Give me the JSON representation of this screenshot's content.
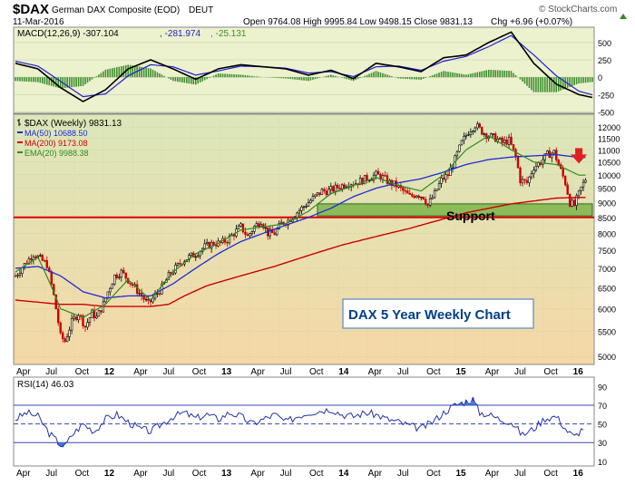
{
  "header": {
    "symbol": "$DAX",
    "name": "German DAX Composite (EOD)",
    "exchange": "DEUT",
    "date": "11-Mar-2016",
    "ohlc": "Open 9764.08 High 9995.84 Low 9498.15 Close 9831.13",
    "change": "Chg +6.96 (+0.07%)",
    "change_arrow": "triangle-up-icon",
    "watermark": "© StockCharts.com"
  },
  "colors": {
    "macd_bg": "#ecf1ce",
    "price_bg_top": "#dbe7ba",
    "price_bg_bottom": "#f5d8a6",
    "rsi_bg": "#ffffff",
    "up_candle": "#000000",
    "down_candle": "#cc0000",
    "ma50": "#1f2ad6",
    "ma200": "#cc0000",
    "ema20": "#2e8b1f",
    "support_line": "#e00000",
    "support_box": "#6fad3c",
    "macd_line": "#000000",
    "signal_line": "#2020d0",
    "histogram": "#3f8f2f",
    "rsi_line": "#2233aa",
    "rsi_fill": "#3a6fd8",
    "annotation_text": "#003f8a"
  },
  "chart_data": [
    {
      "type": "line",
      "panel": "MACD",
      "title": "MACD(12,26,9) -307.104, -281.974, -25.131",
      "legend": [
        {
          "text": "MACD(12,26,9) -307.104",
          "color": "#000000"
        },
        {
          "text": ", -281.974",
          "color": "#2020d0"
        },
        {
          "text": ", -25.131",
          "color": "#3f8f2f"
        }
      ],
      "yticks": [
        500,
        250,
        0,
        -250,
        -500
      ],
      "ylim": [
        -520,
        720
      ],
      "x": [
        0,
        10,
        20,
        30,
        40,
        50,
        60,
        70,
        80,
        90,
        100,
        110,
        120,
        130,
        140,
        150,
        160,
        170,
        180,
        190,
        200,
        210,
        220,
        230,
        240,
        250,
        260
      ],
      "series": [
        {
          "name": "MACD",
          "values": [
            200,
            120,
            -150,
            -350,
            -180,
            120,
            250,
            120,
            -30,
            120,
            180,
            150,
            120,
            30,
            100,
            -20,
            200,
            150,
            80,
            280,
            320,
            500,
            650,
            200,
            -100,
            -250,
            -320
          ]
        },
        {
          "name": "Signal",
          "values": [
            230,
            160,
            -60,
            -280,
            -240,
            20,
            180,
            150,
            30,
            90,
            160,
            150,
            130,
            60,
            80,
            10,
            150,
            160,
            100,
            230,
            300,
            440,
            600,
            320,
            20,
            -200,
            -290
          ]
        }
      ]
    },
    {
      "type": "candlestick",
      "panel": "Price",
      "legend": [
        {
          "text": "$DAX (Weekly) 9831.13",
          "color": "#000000",
          "icon": "bar-icon"
        },
        {
          "text": "MA(50) 10688.50",
          "color": "#1f2ad6"
        },
        {
          "text": "MA(200) 9173.08",
          "color": "#cc0000"
        },
        {
          "text": "EMA(20) 9988.38",
          "color": "#2e8b1f"
        }
      ],
      "ylim": [
        4850,
        12600
      ],
      "yticks": [
        12000,
        11500,
        11000,
        10500,
        10000,
        9500,
        9000,
        8500,
        8000,
        7500,
        7000,
        6500,
        6000,
        5500,
        5000
      ],
      "xlabels": [
        {
          "label": "Apr",
          "x": 0
        },
        {
          "label": "Jul",
          "x": 13
        },
        {
          "label": "Oct",
          "x": 26
        },
        {
          "label": "12",
          "x": 39
        },
        {
          "label": "Apr",
          "x": 52
        },
        {
          "label": "Jul",
          "x": 65
        },
        {
          "label": "Oct",
          "x": 78
        },
        {
          "label": "13",
          "x": 91
        },
        {
          "label": "Apr",
          "x": 104
        },
        {
          "label": "Jul",
          "x": 117
        },
        {
          "label": "Oct",
          "x": 130
        },
        {
          "label": "14",
          "x": 143
        },
        {
          "label": "Apr",
          "x": 156
        },
        {
          "label": "Jul",
          "x": 169
        },
        {
          "label": "Oct",
          "x": 182
        },
        {
          "label": "15",
          "x": 195
        },
        {
          "label": "Apr",
          "x": 208
        },
        {
          "label": "Jul",
          "x": 221
        },
        {
          "label": "Oct",
          "x": 234
        },
        {
          "label": "16",
          "x": 247
        }
      ],
      "price_path": [
        [
          0,
          6800
        ],
        [
          4,
          7100
        ],
        [
          8,
          7400
        ],
        [
          10,
          7300
        ],
        [
          14,
          7100
        ],
        [
          17,
          6300
        ],
        [
          20,
          5400
        ],
        [
          22,
          5300
        ],
        [
          25,
          5700
        ],
        [
          28,
          5900
        ],
        [
          31,
          5600
        ],
        [
          34,
          5900
        ],
        [
          36,
          5800
        ],
        [
          39,
          6100
        ],
        [
          41,
          6400
        ],
        [
          44,
          6800
        ],
        [
          47,
          6900
        ],
        [
          50,
          6700
        ],
        [
          53,
          6500
        ],
        [
          56,
          6300
        ],
        [
          59,
          6100
        ],
        [
          62,
          6300
        ],
        [
          65,
          6500
        ],
        [
          68,
          6800
        ],
        [
          71,
          7000
        ],
        [
          74,
          7200
        ],
        [
          77,
          7300
        ],
        [
          80,
          7400
        ],
        [
          84,
          7600
        ],
        [
          88,
          7700
        ],
        [
          91,
          7700
        ],
        [
          94,
          7800
        ],
        [
          97,
          8000
        ],
        [
          100,
          8200
        ],
        [
          103,
          7900
        ],
        [
          106,
          8200
        ],
        [
          109,
          8400
        ],
        [
          112,
          8000
        ],
        [
          115,
          8000
        ],
        [
          118,
          8300
        ],
        [
          121,
          8400
        ],
        [
          124,
          8600
        ],
        [
          127,
          8800
        ],
        [
          130,
          9000
        ],
        [
          133,
          9200
        ],
        [
          136,
          9400
        ],
        [
          139,
          9400
        ],
        [
          142,
          9500
        ],
        [
          145,
          9600
        ],
        [
          148,
          9700
        ],
        [
          151,
          9700
        ],
        [
          154,
          9800
        ],
        [
          157,
          9900
        ],
        [
          160,
          10000
        ],
        [
          163,
          9900
        ],
        [
          166,
          9700
        ],
        [
          169,
          9600
        ],
        [
          172,
          9400
        ],
        [
          175,
          9200
        ],
        [
          178,
          9300
        ],
        [
          181,
          9200
        ],
        [
          183,
          8900
        ],
        [
          186,
          9300
        ],
        [
          189,
          9800
        ],
        [
          192,
          10000
        ],
        [
          195,
          10600
        ],
        [
          198,
          11300
        ],
        [
          201,
          11800
        ],
        [
          204,
          12100
        ],
        [
          207,
          11800
        ],
        [
          210,
          11600
        ],
        [
          213,
          11500
        ],
        [
          216,
          11300
        ],
        [
          219,
          11400
        ],
        [
          222,
          10700
        ],
        [
          224,
          9800
        ],
        [
          227,
          9700
        ],
        [
          230,
          10300
        ],
        [
          233,
          10500
        ],
        [
          236,
          10800
        ],
        [
          239,
          10900
        ],
        [
          241,
          10400
        ],
        [
          244,
          9700
        ],
        [
          246,
          9000
        ],
        [
          248,
          8900
        ],
        [
          251,
          9500
        ],
        [
          253,
          9831
        ]
      ],
      "ma50": [
        [
          0,
          7000
        ],
        [
          10,
          7050
        ],
        [
          20,
          6800
        ],
        [
          30,
          6400
        ],
        [
          40,
          6250
        ],
        [
          50,
          6300
        ],
        [
          60,
          6300
        ],
        [
          70,
          6600
        ],
        [
          80,
          7000
        ],
        [
          90,
          7400
        ],
        [
          100,
          7750
        ],
        [
          110,
          8000
        ],
        [
          120,
          8250
        ],
        [
          130,
          8500
        ],
        [
          140,
          8800
        ],
        [
          150,
          9200
        ],
        [
          160,
          9500
        ],
        [
          170,
          9700
        ],
        [
          180,
          9850
        ],
        [
          190,
          10100
        ],
        [
          200,
          10400
        ],
        [
          210,
          10600
        ],
        [
          220,
          10700
        ],
        [
          230,
          10750
        ],
        [
          240,
          10800
        ],
        [
          250,
          10688
        ]
      ],
      "ema20": [
        [
          0,
          6900
        ],
        [
          10,
          7300
        ],
        [
          20,
          6000
        ],
        [
          30,
          5800
        ],
        [
          40,
          6100
        ],
        [
          50,
          6700
        ],
        [
          60,
          6200
        ],
        [
          70,
          6900
        ],
        [
          80,
          7400
        ],
        [
          90,
          7700
        ],
        [
          100,
          8100
        ],
        [
          110,
          8200
        ],
        [
          120,
          8300
        ],
        [
          130,
          8700
        ],
        [
          140,
          9300
        ],
        [
          150,
          9600
        ],
        [
          160,
          9900
        ],
        [
          170,
          9600
        ],
        [
          180,
          9400
        ],
        [
          190,
          10000
        ],
        [
          200,
          11000
        ],
        [
          210,
          11600
        ],
        [
          220,
          11000
        ],
        [
          230,
          10500
        ],
        [
          240,
          10400
        ],
        [
          250,
          9988
        ]
      ],
      "ma200": [
        [
          0,
          6200
        ],
        [
          10,
          6150
        ],
        [
          20,
          6100
        ],
        [
          30,
          6100
        ],
        [
          40,
          6050
        ],
        [
          50,
          6050
        ],
        [
          60,
          6050
        ],
        [
          68,
          6100
        ],
        [
          75,
          6300
        ],
        [
          85,
          6550
        ],
        [
          100,
          6800
        ],
        [
          115,
          7050
        ],
        [
          130,
          7350
        ],
        [
          145,
          7650
        ],
        [
          160,
          7900
        ],
        [
          175,
          8150
        ],
        [
          190,
          8450
        ],
        [
          200,
          8650
        ],
        [
          210,
          8800
        ],
        [
          220,
          8950
        ],
        [
          230,
          9050
        ],
        [
          240,
          9150
        ],
        [
          250,
          9173
        ]
      ],
      "support_line": 8500,
      "support_box": {
        "x_start": 134,
        "x_end": 256,
        "y_low": 8550,
        "y_high": 8950,
        "label": "Support"
      },
      "annotation": "DAX 5 Year Weekly Chart",
      "down_arrow": {
        "x": 250,
        "price": 10550
      }
    },
    {
      "type": "line",
      "panel": "RSI",
      "title": "RSI(14) 46.03",
      "yticks": [
        90,
        70,
        50,
        30,
        10
      ],
      "ylim": [
        5,
        100
      ],
      "reference_lines": [
        70,
        50,
        30
      ],
      "values": [
        [
          0,
          55
        ],
        [
          5,
          62
        ],
        [
          10,
          58
        ],
        [
          15,
          40
        ],
        [
          20,
          28
        ],
        [
          22,
          26
        ],
        [
          25,
          38
        ],
        [
          30,
          50
        ],
        [
          35,
          42
        ],
        [
          40,
          55
        ],
        [
          45,
          60
        ],
        [
          50,
          52
        ],
        [
          55,
          45
        ],
        [
          60,
          42
        ],
        [
          65,
          50
        ],
        [
          70,
          58
        ],
        [
          75,
          62
        ],
        [
          80,
          56
        ],
        [
          85,
          60
        ],
        [
          90,
          55
        ],
        [
          95,
          62
        ],
        [
          100,
          58
        ],
        [
          105,
          50
        ],
        [
          110,
          55
        ],
        [
          115,
          60
        ],
        [
          120,
          52
        ],
        [
          125,
          58
        ],
        [
          130,
          62
        ],
        [
          135,
          64
        ],
        [
          140,
          66
        ],
        [
          145,
          60
        ],
        [
          150,
          58
        ],
        [
          155,
          62
        ],
        [
          160,
          60
        ],
        [
          165,
          55
        ],
        [
          170,
          52
        ],
        [
          175,
          48
        ],
        [
          180,
          45
        ],
        [
          185,
          52
        ],
        [
          190,
          62
        ],
        [
          195,
          70
        ],
        [
          200,
          74
        ],
        [
          203,
          76
        ],
        [
          206,
          62
        ],
        [
          210,
          60
        ],
        [
          215,
          55
        ],
        [
          220,
          52
        ],
        [
          225,
          38
        ],
        [
          230,
          45
        ],
        [
          235,
          56
        ],
        [
          240,
          58
        ],
        [
          245,
          42
        ],
        [
          248,
          36
        ],
        [
          252,
          46
        ]
      ]
    }
  ],
  "xaxis_labels": [
    "Apr",
    "Jul",
    "Oct",
    "12",
    "Apr",
    "Jul",
    "Oct",
    "13",
    "Apr",
    "Jul",
    "Oct",
    "14",
    "Apr",
    "Jul",
    "Oct",
    "15",
    "Apr",
    "Jul",
    "Oct",
    "16"
  ]
}
